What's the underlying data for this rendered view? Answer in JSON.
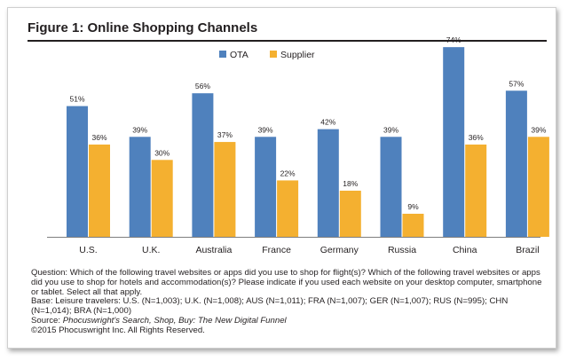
{
  "figure": {
    "title": "Figure 1: Online Shopping Channels"
  },
  "colors": {
    "ota": "#4f81bd",
    "supplier": "#f4b030",
    "text": "#231f20"
  },
  "chart_data": {
    "type": "bar",
    "title": "Figure 1: Online Shopping Channels",
    "categories": [
      "U.S.",
      "U.K.",
      "Australia",
      "France",
      "Germany",
      "Russia",
      "China",
      "Brazil"
    ],
    "series": [
      {
        "name": "OTA",
        "values": [
          51,
          39,
          56,
          39,
          42,
          39,
          74,
          57
        ],
        "labels": [
          "51%",
          "39%",
          "56%",
          "39%",
          "42%",
          "39%",
          "74%",
          "57%"
        ]
      },
      {
        "name": "Supplier",
        "values": [
          36,
          30,
          37,
          22,
          18,
          9,
          36,
          39
        ],
        "labels": [
          "36%",
          "30%",
          "37%",
          "22%",
          "18%",
          "9%",
          "36%",
          "39%"
        ]
      }
    ],
    "xlabel": "",
    "ylabel": "",
    "ylim": [
      0,
      80
    ],
    "grid": false,
    "legend": "top-center"
  },
  "caption": {
    "question": "Question: Which of the following travel websites or apps did you use to shop for flight(s)? Which of the following travel websites or apps did you use to shop for hotels and accommodation(s)? Please indicate if you used each website on your desktop computer, smartphone or tablet. Select all that apply.",
    "base": "Base: Leisure travelers: U.S. (N=1,003); U.K. (N=1,008); AUS (N=1,011); FRA (N=1,007); GER (N=1,007); RUS (N=995); CHN (N=1,014); BRA (N=1,000)",
    "source_prefix": "Source: ",
    "source_title": "Phocuswright's Search, Shop, Buy: The New Digital Funnel",
    "copyright": "©2015 Phocuswright Inc. All Rights Reserved."
  }
}
